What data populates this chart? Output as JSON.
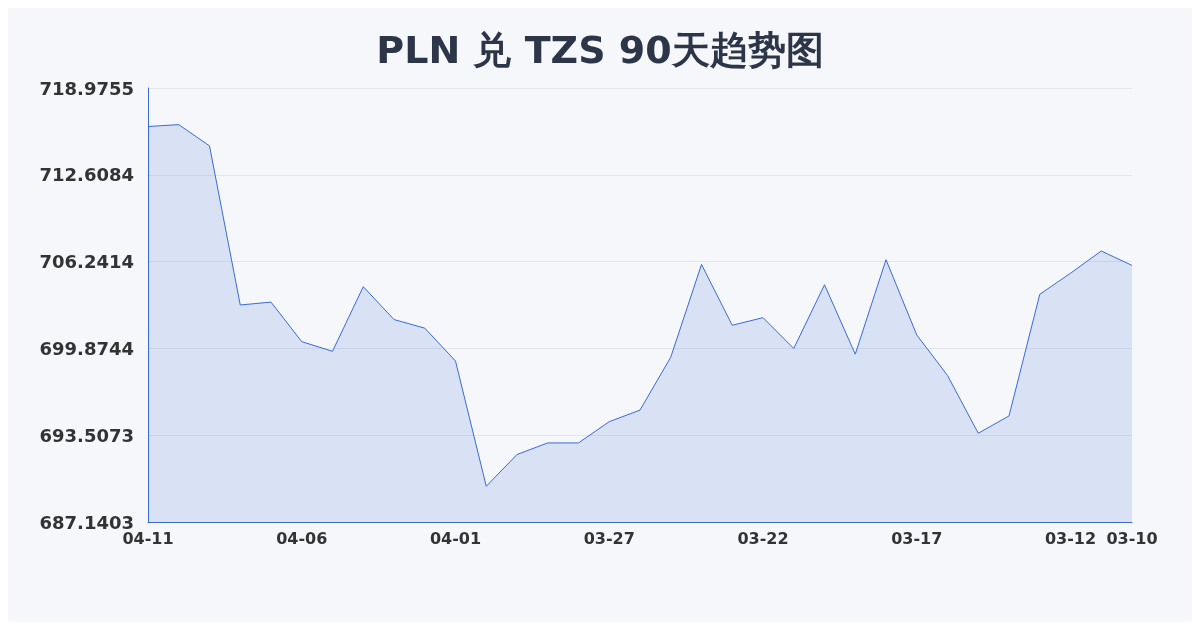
{
  "chart_data": {
    "type": "area",
    "title": "PLN 兑 TZS 90天趋势图",
    "categories": [
      "04-11",
      null,
      null,
      null,
      null,
      "04-06",
      null,
      null,
      null,
      null,
      "04-01",
      null,
      null,
      null,
      null,
      "03-27",
      null,
      null,
      null,
      null,
      "03-22",
      null,
      null,
      null,
      null,
      "03-17",
      null,
      null,
      null,
      null,
      "03-12",
      null,
      "03-10"
    ],
    "series": [
      {
        "color": "#3a6bd4",
        "values": [
          716.15,
          716.29,
          714.73,
          703.06,
          703.27,
          700.37,
          699.66,
          704.4,
          701.99,
          701.36,
          698.95,
          689.76,
          692.09,
          692.94,
          692.94,
          694.5,
          695.35,
          699.23,
          706.03,
          701.57,
          702.13,
          699.87,
          704.54,
          699.45,
          706.38,
          700.86,
          697.89,
          693.65,
          694.92,
          703.84,
          705.39,
          707.02,
          705.96
        ]
      }
    ],
    "ylim": [
      687.1403,
      718.9755
    ],
    "yticks": [
      687.1403,
      693.5073,
      699.8744,
      706.2414,
      712.6084,
      718.9755
    ],
    "grid": "y",
    "marker": "none"
  }
}
